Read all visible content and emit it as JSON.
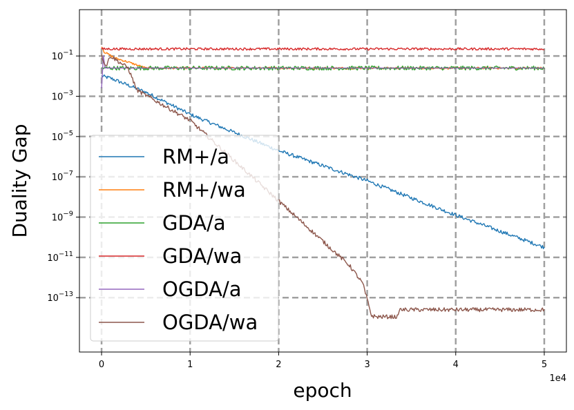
{
  "chart_data": {
    "type": "line",
    "title": "",
    "xlabel": "epoch",
    "ylabel": "Duality Gap",
    "x_offset_label": "1e4",
    "xlim": [
      -2500,
      52500
    ],
    "xticks": [
      0,
      10000,
      20000,
      30000,
      40000,
      50000
    ],
    "xtick_labels": [
      "0",
      "1",
      "2",
      "3",
      "4",
      "5"
    ],
    "y_scale": "log",
    "ylim_log10": [
      -15.7,
      1.3
    ],
    "yticks_log10": [
      -1,
      -3,
      -5,
      -7,
      -9,
      -11,
      -13
    ],
    "ytick_labels": [
      {
        "base": "10",
        "exp": "−1"
      },
      {
        "base": "10",
        "exp": "−3"
      },
      {
        "base": "10",
        "exp": "−5"
      },
      {
        "base": "10",
        "exp": "−7"
      },
      {
        "base": "10",
        "exp": "−9"
      },
      {
        "base": "10",
        "exp": "−11"
      },
      {
        "base": "10",
        "exp": "−13"
      }
    ],
    "grid": true,
    "legend_position": "lower-left",
    "series": [
      {
        "name": "RM+/a",
        "color": "#1f77b4",
        "points": [
          [
            0,
            -2.0
          ],
          [
            1000,
            -2.1
          ],
          [
            5000,
            -2.8
          ],
          [
            10000,
            -3.9
          ],
          [
            20000,
            -5.7
          ],
          [
            30000,
            -7.2
          ],
          [
            40000,
            -8.9
          ],
          [
            45000,
            -9.7
          ],
          [
            50000,
            -10.5
          ]
        ],
        "noise": 0.09
      },
      {
        "name": "RM+/wa",
        "color": "#ff7f0e",
        "points": [
          [
            0,
            -0.5
          ],
          [
            300,
            -0.8
          ],
          [
            1500,
            -1.1
          ],
          [
            3000,
            -1.3
          ],
          [
            5000,
            -1.6
          ],
          [
            50000,
            -1.6
          ]
        ],
        "noise": 0.05
      },
      {
        "name": "GDA/a",
        "color": "#2ca02c",
        "points": [
          [
            0,
            -1.6
          ],
          [
            50000,
            -1.6
          ]
        ],
        "noise": 0.1
      },
      {
        "name": "GDA/wa",
        "color": "#d62728",
        "points": [
          [
            0,
            -0.65
          ],
          [
            50000,
            -0.65
          ]
        ],
        "noise": 0.06
      },
      {
        "name": "OGDA/a",
        "color": "#9467bd",
        "points": [
          [
            0,
            -2.6
          ],
          [
            200,
            -1.0
          ],
          [
            400,
            -1.6
          ],
          [
            50000,
            -1.6
          ]
        ],
        "noise": 0.0
      },
      {
        "name": "OGDA/wa",
        "color": "#8c564b",
        "points": [
          [
            0,
            -1.0
          ],
          [
            500,
            -1.5
          ],
          [
            1000,
            -1.0
          ],
          [
            3000,
            -1.6
          ],
          [
            4000,
            -2.7
          ],
          [
            10000,
            -4.2
          ],
          [
            20000,
            -8.2
          ],
          [
            28000,
            -11.4
          ],
          [
            29500,
            -12.3
          ],
          [
            30500,
            -13.9
          ],
          [
            31000,
            -13.95
          ],
          [
            33500,
            -13.95
          ],
          [
            33600,
            -13.6
          ],
          [
            40000,
            -13.6
          ],
          [
            50000,
            -13.6
          ]
        ],
        "noise": 0.1
      }
    ]
  }
}
